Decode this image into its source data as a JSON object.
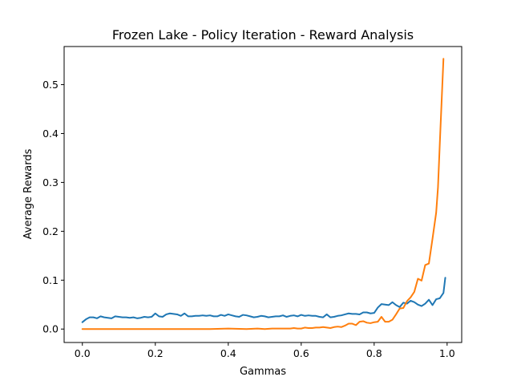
{
  "chart_data": {
    "type": "line",
    "title": "Frozen Lake - Policy Iteration - Reward Analysis",
    "xlabel": "Gammas",
    "ylabel": "Average Rewards",
    "xlim": [
      -0.05,
      1.04
    ],
    "ylim": [
      -0.0275,
      0.578
    ],
    "grid": false,
    "x_ticks": [
      {
        "value": 0.0,
        "label": "0.0"
      },
      {
        "value": 0.2,
        "label": "0.2"
      },
      {
        "value": 0.4,
        "label": "0.4"
      },
      {
        "value": 0.6,
        "label": "0.6"
      },
      {
        "value": 0.8,
        "label": "0.8"
      },
      {
        "value": 1.0,
        "label": "1.0"
      }
    ],
    "y_ticks": [
      {
        "value": 0.0,
        "label": "0.0"
      },
      {
        "value": 0.1,
        "label": "0.1"
      },
      {
        "value": 0.2,
        "label": "0.2"
      },
      {
        "value": 0.3,
        "label": "0.3"
      },
      {
        "value": 0.4,
        "label": "0.4"
      },
      {
        "value": 0.5,
        "label": "0.5"
      }
    ],
    "series": [
      {
        "color": "#1f77b4",
        "points": [
          [
            0.0,
            0.014
          ],
          [
            0.01,
            0.02
          ],
          [
            0.02,
            0.024
          ],
          [
            0.03,
            0.024
          ],
          [
            0.04,
            0.022
          ],
          [
            0.05,
            0.026
          ],
          [
            0.06,
            0.024
          ],
          [
            0.07,
            0.023
          ],
          [
            0.08,
            0.022
          ],
          [
            0.09,
            0.026
          ],
          [
            0.1,
            0.025
          ],
          [
            0.11,
            0.024
          ],
          [
            0.12,
            0.024
          ],
          [
            0.13,
            0.023
          ],
          [
            0.14,
            0.024
          ],
          [
            0.15,
            0.022
          ],
          [
            0.16,
            0.023
          ],
          [
            0.17,
            0.025
          ],
          [
            0.18,
            0.024
          ],
          [
            0.19,
            0.025
          ],
          [
            0.2,
            0.032
          ],
          [
            0.21,
            0.026
          ],
          [
            0.22,
            0.025
          ],
          [
            0.23,
            0.03
          ],
          [
            0.24,
            0.032
          ],
          [
            0.25,
            0.031
          ],
          [
            0.26,
            0.03
          ],
          [
            0.27,
            0.027
          ],
          [
            0.28,
            0.032
          ],
          [
            0.29,
            0.026
          ],
          [
            0.3,
            0.026
          ],
          [
            0.31,
            0.027
          ],
          [
            0.32,
            0.027
          ],
          [
            0.33,
            0.028
          ],
          [
            0.34,
            0.027
          ],
          [
            0.35,
            0.028
          ],
          [
            0.36,
            0.026
          ],
          [
            0.37,
            0.026
          ],
          [
            0.38,
            0.029
          ],
          [
            0.39,
            0.027
          ],
          [
            0.4,
            0.03
          ],
          [
            0.41,
            0.028
          ],
          [
            0.42,
            0.026
          ],
          [
            0.43,
            0.025
          ],
          [
            0.44,
            0.029
          ],
          [
            0.45,
            0.028
          ],
          [
            0.46,
            0.026
          ],
          [
            0.47,
            0.024
          ],
          [
            0.48,
            0.025
          ],
          [
            0.49,
            0.027
          ],
          [
            0.5,
            0.026
          ],
          [
            0.51,
            0.024
          ],
          [
            0.52,
            0.025
          ],
          [
            0.53,
            0.026
          ],
          [
            0.54,
            0.026
          ],
          [
            0.55,
            0.028
          ],
          [
            0.56,
            0.025
          ],
          [
            0.57,
            0.027
          ],
          [
            0.58,
            0.028
          ],
          [
            0.59,
            0.026
          ],
          [
            0.6,
            0.029
          ],
          [
            0.61,
            0.027
          ],
          [
            0.62,
            0.028
          ],
          [
            0.63,
            0.027
          ],
          [
            0.64,
            0.027
          ],
          [
            0.65,
            0.025
          ],
          [
            0.66,
            0.024
          ],
          [
            0.67,
            0.03
          ],
          [
            0.68,
            0.024
          ],
          [
            0.69,
            0.025
          ],
          [
            0.7,
            0.027
          ],
          [
            0.71,
            0.028
          ],
          [
            0.72,
            0.03
          ],
          [
            0.73,
            0.032
          ],
          [
            0.74,
            0.031
          ],
          [
            0.75,
            0.031
          ],
          [
            0.76,
            0.03
          ],
          [
            0.77,
            0.034
          ],
          [
            0.78,
            0.034
          ],
          [
            0.79,
            0.032
          ],
          [
            0.8,
            0.033
          ],
          [
            0.81,
            0.044
          ],
          [
            0.82,
            0.051
          ],
          [
            0.83,
            0.05
          ],
          [
            0.84,
            0.049
          ],
          [
            0.85,
            0.055
          ],
          [
            0.86,
            0.049
          ],
          [
            0.87,
            0.045
          ],
          [
            0.88,
            0.054
          ],
          [
            0.89,
            0.052
          ],
          [
            0.9,
            0.058
          ],
          [
            0.91,
            0.055
          ],
          [
            0.92,
            0.05
          ],
          [
            0.93,
            0.047
          ],
          [
            0.94,
            0.052
          ],
          [
            0.95,
            0.06
          ],
          [
            0.96,
            0.049
          ],
          [
            0.97,
            0.061
          ],
          [
            0.98,
            0.063
          ],
          [
            0.99,
            0.074
          ],
          [
            0.995,
            0.105
          ]
        ]
      },
      {
        "color": "#ff7f0e",
        "points": [
          [
            0.0,
            0.0
          ],
          [
            0.05,
            0.0
          ],
          [
            0.1,
            0.0
          ],
          [
            0.15,
            0.0
          ],
          [
            0.2,
            0.0
          ],
          [
            0.25,
            0.0
          ],
          [
            0.3,
            0.0
          ],
          [
            0.35,
            0.0
          ],
          [
            0.4,
            0.001
          ],
          [
            0.45,
            0.0
          ],
          [
            0.48,
            0.001
          ],
          [
            0.5,
            0.0
          ],
          [
            0.52,
            0.001
          ],
          [
            0.55,
            0.001
          ],
          [
            0.57,
            0.001
          ],
          [
            0.58,
            0.002
          ],
          [
            0.59,
            0.001
          ],
          [
            0.6,
            0.001
          ],
          [
            0.61,
            0.003
          ],
          [
            0.62,
            0.002
          ],
          [
            0.63,
            0.002
          ],
          [
            0.64,
            0.003
          ],
          [
            0.65,
            0.003
          ],
          [
            0.66,
            0.004
          ],
          [
            0.67,
            0.003
          ],
          [
            0.68,
            0.002
          ],
          [
            0.69,
            0.004
          ],
          [
            0.7,
            0.005
          ],
          [
            0.71,
            0.004
          ],
          [
            0.72,
            0.007
          ],
          [
            0.73,
            0.011
          ],
          [
            0.74,
            0.011
          ],
          [
            0.75,
            0.008
          ],
          [
            0.76,
            0.015
          ],
          [
            0.77,
            0.016
          ],
          [
            0.78,
            0.013
          ],
          [
            0.79,
            0.012
          ],
          [
            0.8,
            0.014
          ],
          [
            0.81,
            0.015
          ],
          [
            0.82,
            0.025
          ],
          [
            0.83,
            0.015
          ],
          [
            0.84,
            0.015
          ],
          [
            0.85,
            0.019
          ],
          [
            0.86,
            0.03
          ],
          [
            0.87,
            0.042
          ],
          [
            0.88,
            0.043
          ],
          [
            0.89,
            0.057
          ],
          [
            0.9,
            0.065
          ],
          [
            0.91,
            0.076
          ],
          [
            0.92,
            0.103
          ],
          [
            0.93,
            0.099
          ],
          [
            0.94,
            0.131
          ],
          [
            0.95,
            0.134
          ],
          [
            0.96,
            0.185
          ],
          [
            0.97,
            0.238
          ],
          [
            0.975,
            0.29
          ],
          [
            0.98,
            0.38
          ],
          [
            0.99,
            0.553
          ]
        ]
      }
    ]
  }
}
